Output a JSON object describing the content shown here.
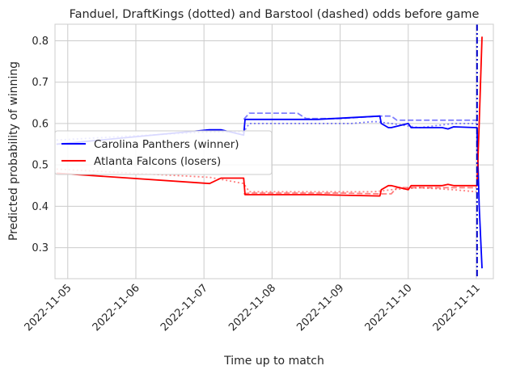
{
  "chart_data": {
    "type": "line",
    "title": "Fanduel, DraftKings (dotted) and Barstool (dashed) odds before game",
    "xlabel": "Time up to match",
    "ylabel": "Predicted probability of winning",
    "xlim": [
      "2022-11-04 19:30",
      "2022-11-11 06:00"
    ],
    "ylim": [
      0.225,
      0.84
    ],
    "x_ticks": [
      "2022-11-05",
      "2022-11-06",
      "2022-11-07",
      "2022-11-08",
      "2022-11-09",
      "2022-11-10",
      "2022-11-11"
    ],
    "y_ticks": [
      0.3,
      0.4,
      0.5,
      0.6,
      0.7,
      0.8
    ],
    "grid": true,
    "legend_position": "center-left",
    "match_start": "2022-11-11 00:15",
    "legend": [
      {
        "name": "Carolina Panthers (winner)",
        "color": "#0000ff"
      },
      {
        "name": "Atlanta Falcons (losers)",
        "color": "#ff0000"
      }
    ],
    "series": [
      {
        "name": "Carolina Panthers (winner)",
        "book": "Fanduel",
        "style": "solid",
        "color": "#0000ff",
        "x": [
          "2022-11-04 20:00",
          "2022-11-07 02:00",
          "2022-11-07 06:00",
          "2022-11-07 14:00",
          "2022-11-07 14:30",
          "2022-11-08 16:00",
          "2022-11-09 14:00",
          "2022-11-09 14:30",
          "2022-11-09 17:00",
          "2022-11-09 18:00",
          "2022-11-10 00:00",
          "2022-11-10 01:00",
          "2022-11-10 12:00",
          "2022-11-10 14:00",
          "2022-11-10 16:00",
          "2022-11-11 00:00",
          "2022-11-11 00:15",
          "2022-11-11 01:00",
          "2022-11-11 02:00"
        ],
        "y": [
          0.55,
          0.585,
          0.585,
          0.572,
          0.61,
          0.61,
          0.618,
          0.6,
          0.59,
          0.59,
          0.6,
          0.59,
          0.59,
          0.587,
          0.592,
          0.59,
          0.59,
          0.4,
          0.25
        ]
      },
      {
        "name": "Atlanta Falcons (losers)",
        "book": "Fanduel",
        "style": "solid",
        "color": "#ff0000",
        "x": [
          "2022-11-04 20:00",
          "2022-11-07 02:00",
          "2022-11-07 06:00",
          "2022-11-07 14:00",
          "2022-11-07 14:30",
          "2022-11-08 16:00",
          "2022-11-09 14:00",
          "2022-11-09 14:30",
          "2022-11-09 17:00",
          "2022-11-09 18:00",
          "2022-11-10 00:00",
          "2022-11-10 01:00",
          "2022-11-10 12:00",
          "2022-11-10 14:00",
          "2022-11-10 16:00",
          "2022-11-11 00:00",
          "2022-11-11 00:15",
          "2022-11-11 01:00",
          "2022-11-11 02:00"
        ],
        "y": [
          0.48,
          0.455,
          0.468,
          0.468,
          0.428,
          0.428,
          0.425,
          0.44,
          0.45,
          0.45,
          0.44,
          0.45,
          0.45,
          0.453,
          0.45,
          0.45,
          0.45,
          0.6,
          0.81
        ]
      },
      {
        "name": "Carolina Panthers (winner)",
        "book": "DraftKings",
        "style": "dotted",
        "color": "#0000ff",
        "x": [
          "2022-11-04 20:00",
          "2022-11-07 02:00",
          "2022-11-07 14:00",
          "2022-11-07 16:00",
          "2022-11-08 00:00",
          "2022-11-08 04:00",
          "2022-11-09 04:00",
          "2022-11-09 12:00",
          "2022-11-09 18:00",
          "2022-11-10 04:00",
          "2022-11-10 16:00",
          "2022-11-11 00:00"
        ],
        "y": [
          0.56,
          0.58,
          0.58,
          0.6,
          0.6,
          0.6,
          0.6,
          0.605,
          0.6,
          0.59,
          0.6,
          0.6
        ]
      },
      {
        "name": "Atlanta Falcons (losers)",
        "book": "DraftKings",
        "style": "dotted",
        "color": "#ff0000",
        "x": [
          "2022-11-04 20:00",
          "2022-11-07 02:00",
          "2022-11-07 14:00",
          "2022-11-07 16:00",
          "2022-11-08 04:00",
          "2022-11-09 04:00",
          "2022-11-09 12:00",
          "2022-11-09 18:00",
          "2022-11-10 04:00",
          "2022-11-10 16:00",
          "2022-11-11 00:00"
        ],
        "y": [
          0.49,
          0.47,
          0.455,
          0.435,
          0.435,
          0.435,
          0.435,
          0.44,
          0.445,
          0.44,
          0.435
        ]
      },
      {
        "name": "Carolina Panthers (winner)",
        "book": "Barstool",
        "style": "dashed",
        "color": "#0000ff",
        "x": [
          "2022-11-07 14:00",
          "2022-11-07 16:00",
          "2022-11-08 09:00",
          "2022-11-08 12:00",
          "2022-11-09 00:00",
          "2022-11-09 14:00",
          "2022-11-09 18:00",
          "2022-11-09 20:00",
          "2022-11-10 20:00",
          "2022-11-11 00:00"
        ],
        "y": [
          0.61,
          0.625,
          0.625,
          0.612,
          0.612,
          0.618,
          0.618,
          0.608,
          0.608,
          0.608
        ]
      },
      {
        "name": "Atlanta Falcons (losers)",
        "book": "Barstool",
        "style": "dashed",
        "color": "#ff0000",
        "x": [
          "2022-11-07 14:00",
          "2022-11-07 16:00",
          "2022-11-08 09:00",
          "2022-11-08 12:00",
          "2022-11-09 00:00",
          "2022-11-09 14:00",
          "2022-11-09 18:00",
          "2022-11-09 20:00",
          "2022-11-10 20:00",
          "2022-11-11 00:00"
        ],
        "y": [
          0.43,
          0.432,
          0.432,
          0.432,
          0.432,
          0.43,
          0.43,
          0.445,
          0.445,
          0.445
        ]
      }
    ]
  }
}
